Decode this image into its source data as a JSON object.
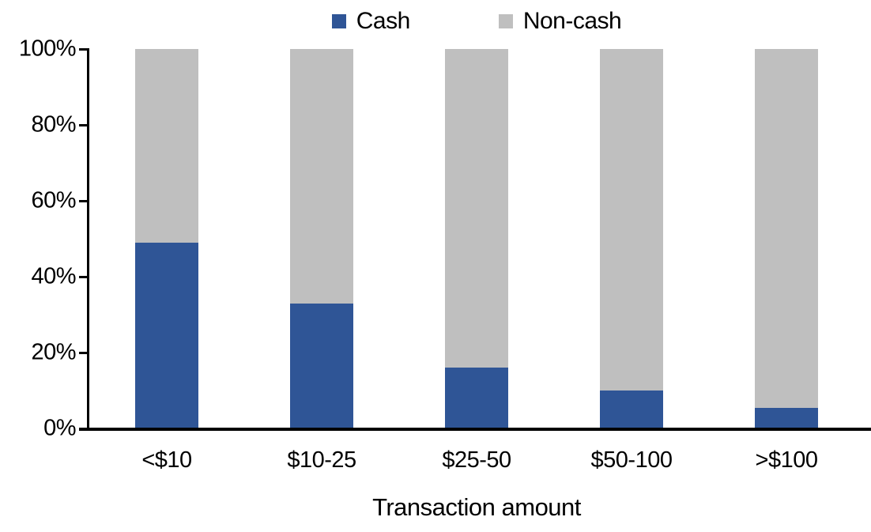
{
  "chart_data": {
    "type": "bar",
    "variant": "stacked-100-percent",
    "title": "",
    "xlabel": "Transaction amount",
    "ylabel": "",
    "categories": [
      "<$10",
      "$10-25",
      "$25-50",
      "$50-100",
      ">$100"
    ],
    "series": [
      {
        "name": "Cash",
        "color": "#2F5596",
        "values": [
          49,
          33,
          16,
          10,
          5.5
        ]
      },
      {
        "name": "Non-cash",
        "color": "#BFBFBF",
        "values": [
          51,
          67,
          84,
          90,
          94.5
        ]
      }
    ],
    "ylim": [
      0,
      100
    ],
    "ytick_step": 20,
    "ytick_labels": [
      "0%",
      "20%",
      "40%",
      "60%",
      "80%",
      "100%"
    ],
    "grid": false,
    "legend_position": "top-center",
    "axis_color": "#000000",
    "background_color": "#FFFFFF"
  }
}
